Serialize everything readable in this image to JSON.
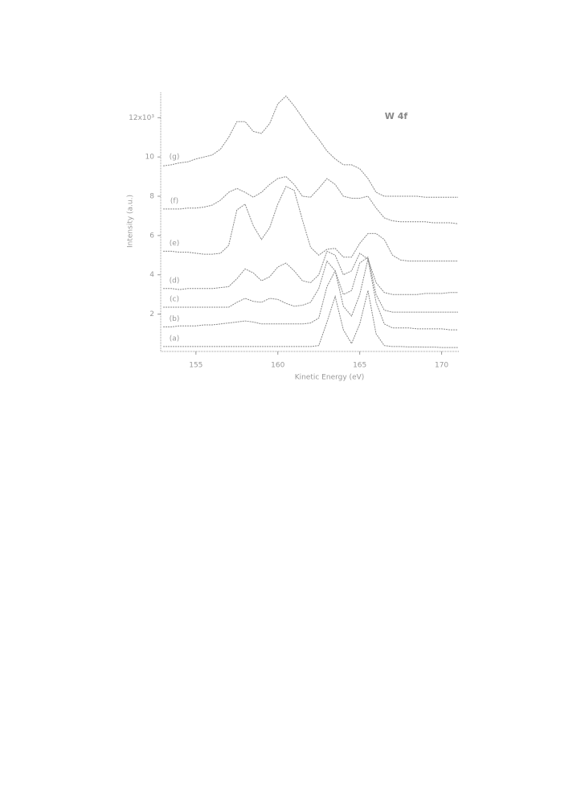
{
  "chart_data": {
    "type": "line",
    "annotation": "W 4f",
    "xlabel": "Kinetic Energy (eV)",
    "ylabel": "Intensity (a.u.)",
    "x": [
      153,
      153.5,
      154,
      154.5,
      155,
      155.5,
      156,
      156.5,
      157,
      157.5,
      158,
      158.5,
      159,
      159.5,
      160,
      160.5,
      161,
      161.5,
      162,
      162.5,
      163,
      163.5,
      164,
      164.5,
      165,
      165.5,
      166,
      166.5,
      167,
      167.5,
      168,
      168.5,
      169,
      169.5,
      170,
      170.5,
      171
    ],
    "series": [
      {
        "name": "(a)",
        "color": "#8a8a8a",
        "values": [
          0.35,
          0.35,
          0.35,
          0.35,
          0.35,
          0.35,
          0.35,
          0.35,
          0.35,
          0.35,
          0.35,
          0.35,
          0.35,
          0.35,
          0.35,
          0.35,
          0.35,
          0.35,
          0.35,
          0.4,
          1.6,
          2.9,
          1.2,
          0.5,
          1.5,
          3.2,
          1.0,
          0.4,
          0.35,
          0.35,
          0.33,
          0.33,
          0.32,
          0.32,
          0.3,
          0.3,
          0.3
        ]
      },
      {
        "name": "(b)",
        "color": "#8a8a8a",
        "values": [
          1.35,
          1.35,
          1.4,
          1.4,
          1.4,
          1.45,
          1.45,
          1.5,
          1.55,
          1.6,
          1.65,
          1.6,
          1.5,
          1.5,
          1.5,
          1.5,
          1.5,
          1.5,
          1.55,
          1.8,
          3.4,
          4.2,
          2.4,
          1.9,
          3.0,
          4.8,
          2.6,
          1.5,
          1.3,
          1.3,
          1.3,
          1.25,
          1.25,
          1.25,
          1.25,
          1.2,
          1.2
        ]
      },
      {
        "name": "(c)",
        "color": "#8a8a8a",
        "values": [
          2.35,
          2.35,
          2.35,
          2.35,
          2.35,
          2.35,
          2.35,
          2.35,
          2.35,
          2.6,
          2.8,
          2.65,
          2.6,
          2.8,
          2.75,
          2.55,
          2.4,
          2.45,
          2.6,
          3.3,
          4.7,
          4.2,
          3.0,
          3.2,
          4.6,
          4.9,
          3.0,
          2.2,
          2.1,
          2.1,
          2.1,
          2.1,
          2.1,
          2.1,
          2.1,
          2.1,
          2.1
        ]
      },
      {
        "name": "(d)",
        "color": "#8a8a8a",
        "values": [
          3.3,
          3.3,
          3.25,
          3.3,
          3.3,
          3.3,
          3.3,
          3.35,
          3.4,
          3.8,
          4.3,
          4.1,
          3.7,
          3.9,
          4.4,
          4.6,
          4.2,
          3.7,
          3.6,
          4.0,
          5.2,
          5.0,
          4.0,
          4.2,
          5.1,
          4.8,
          3.6,
          3.1,
          3.0,
          3.0,
          3.0,
          3.0,
          3.05,
          3.05,
          3.05,
          3.1,
          3.1
        ]
      },
      {
        "name": "(e)",
        "color": "#8a8a8a",
        "values": [
          5.2,
          5.2,
          5.15,
          5.15,
          5.1,
          5.05,
          5.05,
          5.1,
          5.5,
          7.3,
          7.6,
          6.5,
          5.8,
          6.4,
          7.6,
          8.5,
          8.3,
          6.8,
          5.4,
          5.0,
          5.3,
          5.35,
          4.9,
          4.9,
          5.6,
          6.1,
          6.1,
          5.8,
          5.0,
          4.75,
          4.7,
          4.7,
          4.7,
          4.7,
          4.7,
          4.7,
          4.7
        ]
      },
      {
        "name": "(f)",
        "color": "#8a8a8a",
        "values": [
          7.35,
          7.35,
          7.35,
          7.4,
          7.4,
          7.45,
          7.55,
          7.8,
          8.2,
          8.4,
          8.2,
          7.95,
          8.2,
          8.6,
          8.9,
          9.0,
          8.6,
          8.0,
          7.95,
          8.4,
          8.9,
          8.6,
          8.0,
          7.9,
          7.9,
          8.0,
          7.4,
          6.9,
          6.75,
          6.7,
          6.7,
          6.7,
          6.7,
          6.65,
          6.65,
          6.65,
          6.6
        ]
      },
      {
        "name": "(g)",
        "color": "#8a8a8a",
        "values": [
          9.55,
          9.6,
          9.7,
          9.75,
          9.9,
          10.0,
          10.1,
          10.4,
          11.0,
          11.8,
          11.8,
          11.3,
          11.2,
          11.7,
          12.7,
          13.1,
          12.6,
          12.0,
          11.4,
          10.9,
          10.3,
          9.9,
          9.6,
          9.6,
          9.4,
          8.9,
          8.2,
          8.0,
          8.0,
          8.0,
          8.0,
          8.0,
          7.95,
          7.95,
          7.95,
          7.95,
          7.95
        ]
      }
    ],
    "xlim": [
      152.85,
      171.1
    ],
    "xticks": [
      155,
      160,
      165,
      170
    ],
    "ylim": [
      0.1,
      13.2
    ],
    "yticks": [
      2,
      4,
      6,
      8,
      10,
      {
        "value": 12,
        "label": "12x10³"
      }
    ]
  }
}
